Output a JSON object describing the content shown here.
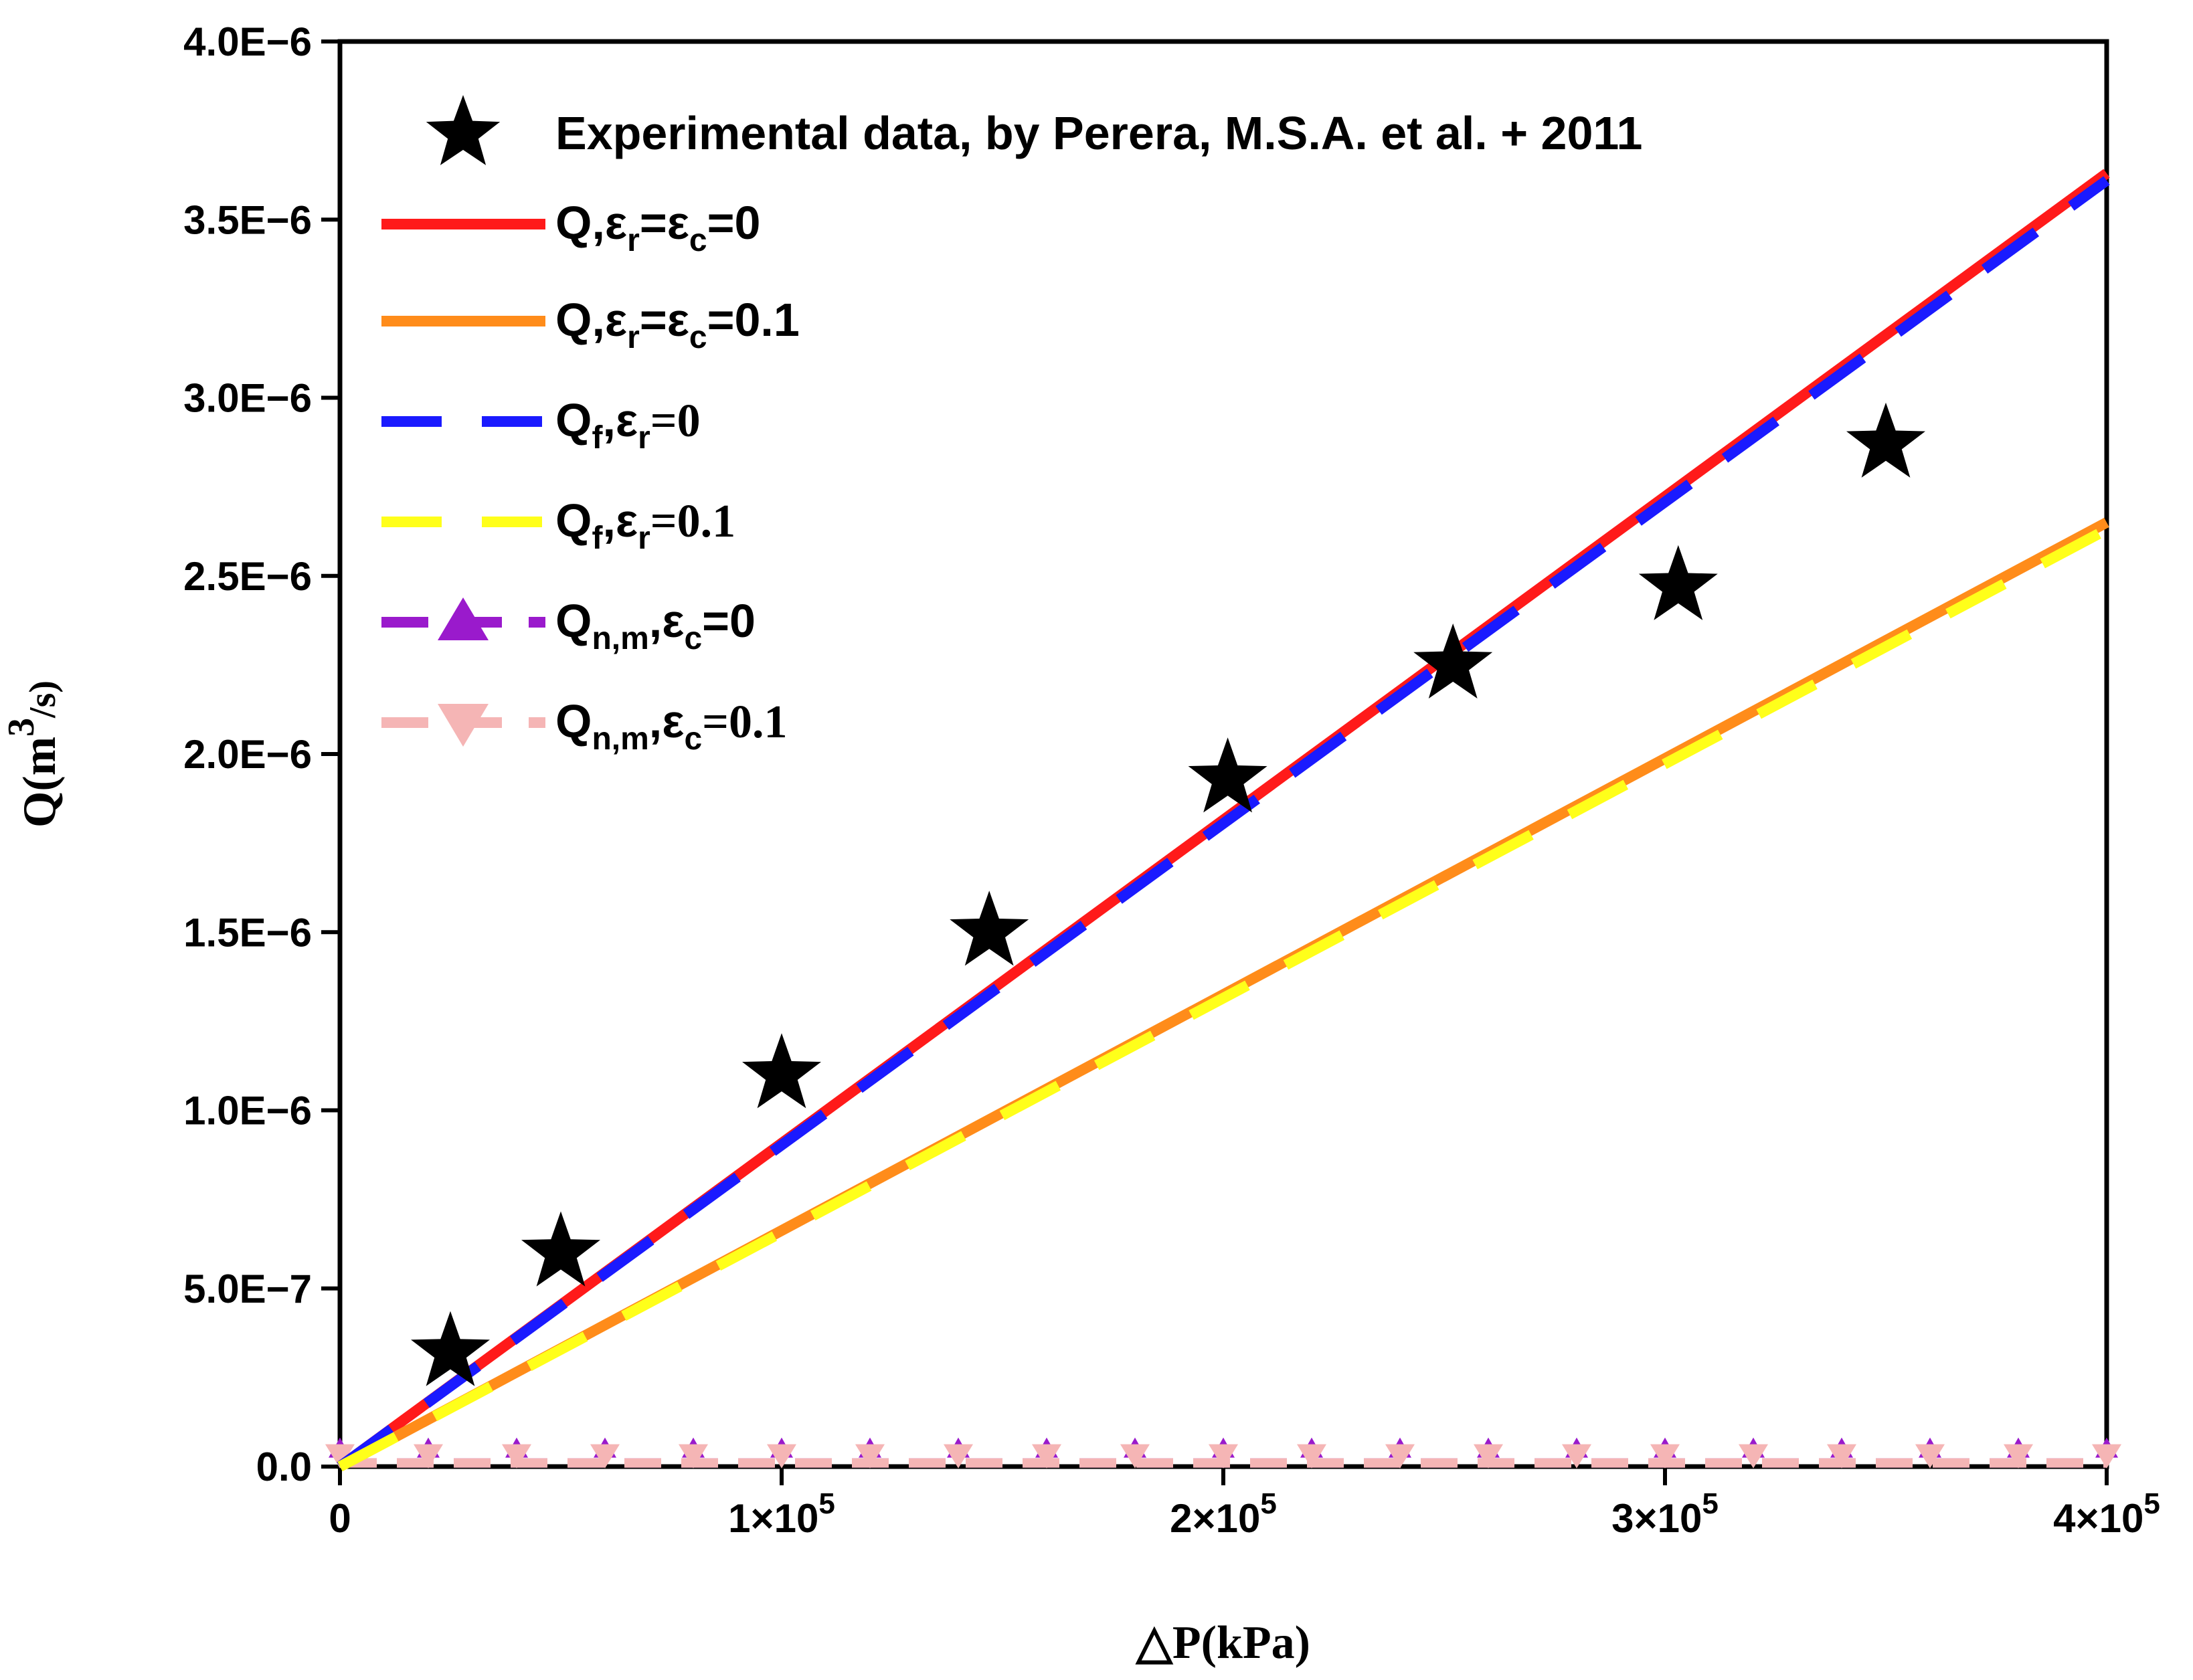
{
  "chart_data": {
    "type": "line",
    "xlabel": "△P(kPa)",
    "ylabel": "Q(m³/s)",
    "xlim": [
      0,
      400000
    ],
    "ylim": [
      0,
      4e-06
    ],
    "x_ticks": [
      {
        "value": 0,
        "label": "0"
      },
      {
        "value": 100000,
        "label": "1×10",
        "sup": "5"
      },
      {
        "value": 200000,
        "label": "2×10",
        "sup": "5"
      },
      {
        "value": 300000,
        "label": "3×10",
        "sup": "5"
      },
      {
        "value": 400000,
        "label": "4×10",
        "sup": "5"
      }
    ],
    "y_ticks": [
      {
        "value": 0,
        "label": "0.0"
      },
      {
        "value": 5e-07,
        "label": "5.0E−7"
      },
      {
        "value": 1e-06,
        "label": "1.0E−6"
      },
      {
        "value": 1.5e-06,
        "label": "1.5E−6"
      },
      {
        "value": 2e-06,
        "label": "2.0E−6"
      },
      {
        "value": 2.5e-06,
        "label": "2.5E−6"
      },
      {
        "value": 3e-06,
        "label": "3.0E−6"
      },
      {
        "value": 3.5e-06,
        "label": "3.5E−6"
      },
      {
        "value": 4e-06,
        "label": "4.0E−6"
      }
    ],
    "legend_position": "top-left",
    "series": [
      {
        "name": "Experimental data, by Perera, M.S.A. et al. + 2011",
        "kind": "scatter-star",
        "color": "#000000",
        "x": [
          25000,
          50000,
          100000,
          147000,
          201000,
          252000,
          303000,
          350000
        ],
        "y": [
          3.2e-07,
          6e-07,
          1.1e-06,
          1.5e-06,
          1.93e-06,
          2.25e-06,
          2.47e-06,
          2.87e-06
        ]
      },
      {
        "name": "Q,εr=εc=0",
        "kind": "solid",
        "color": "#ff1a1a",
        "x": [
          0,
          400000
        ],
        "y": [
          0,
          3.63e-06
        ]
      },
      {
        "name": "Q,εr=εc=0.1",
        "kind": "solid",
        "color": "#ff8c1a",
        "x": [
          0,
          400000
        ],
        "y": [
          0,
          2.65e-06
        ]
      },
      {
        "name": "Qf,εr=0",
        "kind": "dashed",
        "color": "#1a1aff",
        "x": [
          0,
          400000
        ],
        "y": [
          0,
          3.61e-06
        ]
      },
      {
        "name": "Qf,εr=0.1",
        "kind": "dashed",
        "color": "#ffff1a",
        "x": [
          0,
          400000
        ],
        "y": [
          0,
          2.63e-06
        ]
      },
      {
        "name": "Qn,m,εc=0",
        "kind": "line-triangle-up",
        "color": "#9a1acc",
        "x": [
          0,
          400000
        ],
        "y": [
          1e-08,
          1e-08
        ]
      },
      {
        "name": "Qn,m,εc=0.1",
        "kind": "line-triangle-down",
        "color": "#f5b5b5",
        "x": [
          0,
          400000
        ],
        "y": [
          1e-08,
          1e-08
        ]
      }
    ]
  },
  "legend": {
    "experimental": "Experimental data, by Perera, M.S.A. et al. + 2011",
    "q0_main": "Q,ε",
    "q0_sub1": "r",
    "q0_mid": "=ε",
    "q0_sub2": "c",
    "q0_end": "=0",
    "q01_main": "Q,ε",
    "q01_sub1": "r",
    "q01_mid": "=ε",
    "q01_sub2": "c",
    "q01_end": "=0.1",
    "qf0_main": "Q",
    "qf0_sub1": "f",
    "qf0_mid": ",ε",
    "qf0_sub2": "r",
    "qf0_end": "=0",
    "qf01_main": "Q",
    "qf01_sub1": "f",
    "qf01_mid": ",ε",
    "qf01_sub2": "r",
    "qf01_end": "=0.1",
    "qn0_main": "Q",
    "qn0_sub1": "n,m",
    "qn0_mid": ",ε",
    "qn0_sub2": "c",
    "qn0_end": "=0",
    "qn01_main": "Q",
    "qn01_sub1": "n,m",
    "qn01_mid": ",ε",
    "qn01_sub2": "c",
    "qn01_end": "=0.1"
  },
  "axis": {
    "ylabel_main": "Q(m",
    "ylabel_sup": "3",
    "ylabel_end": "/s)",
    "xlabel": "△P(kPa)"
  }
}
